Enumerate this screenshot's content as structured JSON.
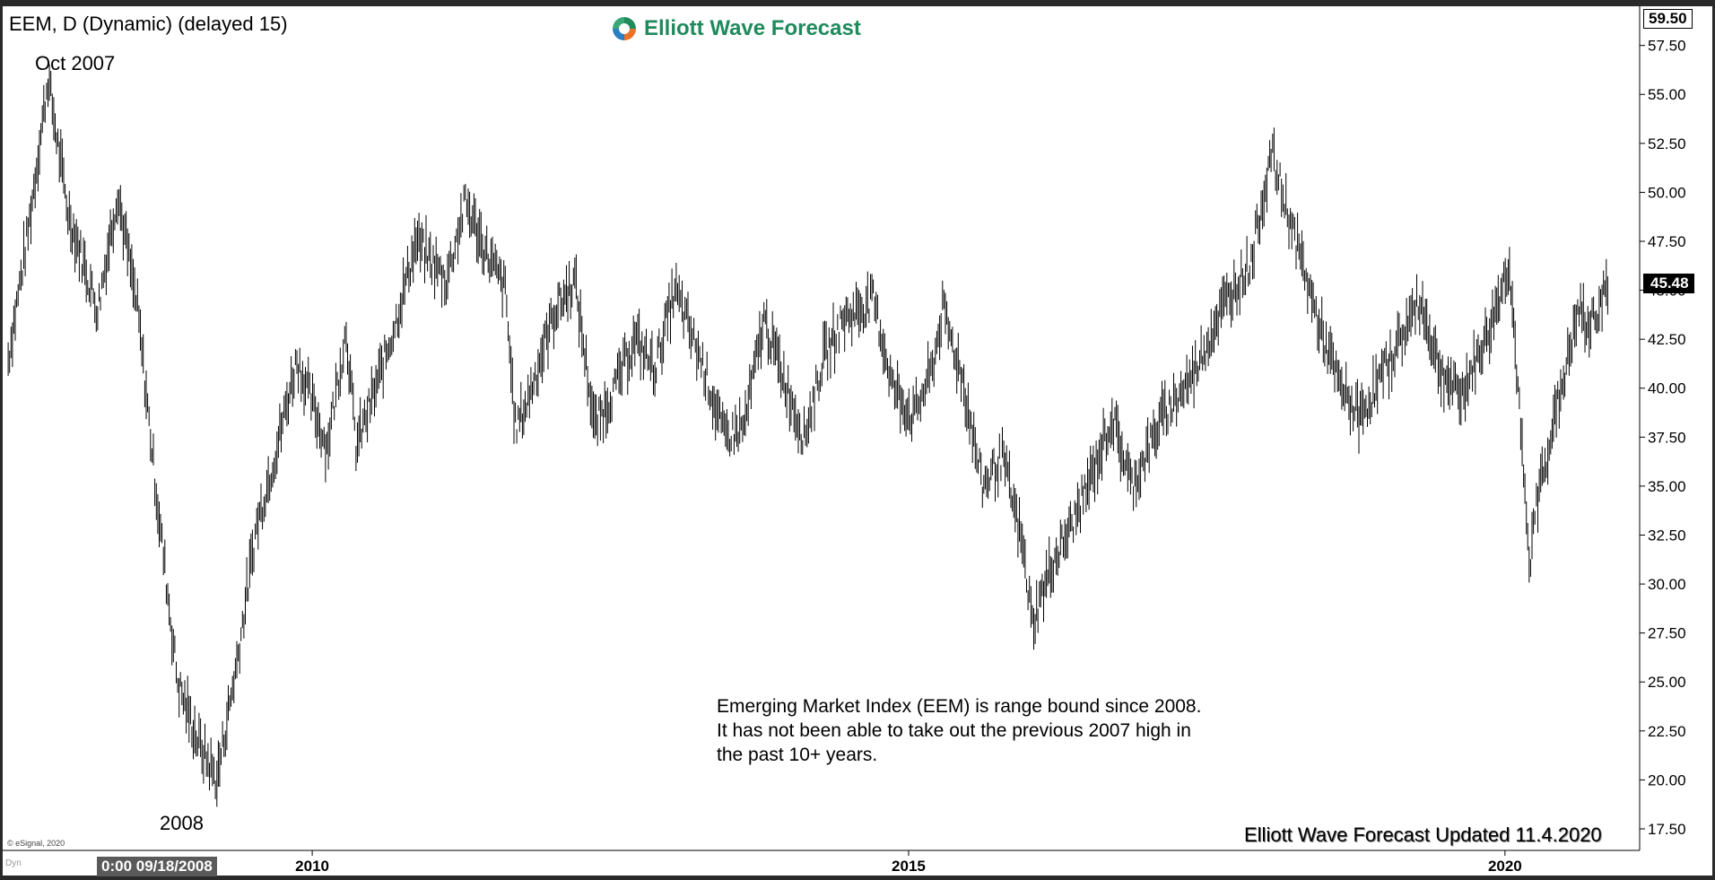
{
  "header": {
    "symbol": "EEM, D (Dynamic) (delayed 15)"
  },
  "logo": {
    "text": "Elliott Wave Forecast",
    "icon": "swirl-logo-icon"
  },
  "labels": {
    "peak": "Oct 2007",
    "trough": "2008"
  },
  "annotation": [
    "Emerging Market Index (EEM) is range bound since 2008.",
    "It has not been able to take out the previous 2007 high in",
    "the past 10+ years."
  ],
  "footer": {
    "updated": "Elliott Wave Forecast Updated 11.4.2020",
    "copyright": "© eSignal, 2020",
    "dyn": "Dyn"
  },
  "cursor": {
    "label": "0:00 09/18/2008"
  },
  "price_tag": {
    "last": "45.48",
    "top": "59.50"
  },
  "colors": {
    "bars": "#000000",
    "logo_green": "#1f8a5c",
    "logo_orange": "#e8742a",
    "logo_blue": "#2a7fc1"
  },
  "chart_data": {
    "type": "line",
    "style": "ohlc-bars",
    "x_tick_labels": [
      "2010",
      "2015",
      "2020"
    ],
    "y_tick_labels": [
      "57.50",
      "55.00",
      "52.50",
      "50.00",
      "47.50",
      "45.00",
      "42.50",
      "40.00",
      "37.50",
      "35.00",
      "32.50",
      "30.00",
      "27.50",
      "25.00",
      "22.50",
      "20.00",
      "17.50"
    ],
    "ylim": [
      16.4,
      59.5
    ],
    "xlim": [
      "2007-06-01",
      "2020-11-04"
    ],
    "grid": false,
    "series": [
      {
        "x": [
          "2007-06",
          "2007-08",
          "2007-10",
          "2007-12",
          "2008-03",
          "2008-05",
          "2008-07",
          "2008-09",
          "2008-11",
          "2009-01",
          "2009-03",
          "2009-05",
          "2009-07",
          "2009-09",
          "2009-11",
          "2010-02",
          "2010-04",
          "2010-05",
          "2010-07",
          "2010-09",
          "2010-11",
          "2011-02",
          "2011-04",
          "2011-06",
          "2011-08",
          "2011-09",
          "2011-10",
          "2012-01",
          "2012-03",
          "2012-05",
          "2012-07",
          "2012-09",
          "2012-11",
          "2013-01",
          "2013-04",
          "2013-06",
          "2013-08",
          "2013-10",
          "2013-12",
          "2014-02",
          "2014-04",
          "2014-06",
          "2014-09",
          "2014-11",
          "2015-01",
          "2015-03",
          "2015-04",
          "2015-06",
          "2015-08",
          "2015-10",
          "2015-12",
          "2016-01",
          "2016-03",
          "2016-05",
          "2016-07",
          "2016-09",
          "2016-11",
          "2017-02",
          "2017-05",
          "2017-08",
          "2017-11",
          "2018-01",
          "2018-03",
          "2018-06",
          "2018-08",
          "2018-10",
          "2019-01",
          "2019-04",
          "2019-06",
          "2019-08",
          "2019-11",
          "2020-01",
          "2020-03",
          "2020-04",
          "2020-06",
          "2020-08",
          "2020-09",
          "2020-11"
        ],
        "values": [
          41.5,
          48.0,
          55.8,
          49.0,
          44.0,
          50.0,
          44.0,
          34.0,
          25.0,
          22.0,
          20.0,
          26.0,
          33.0,
          37.0,
          41.5,
          37.0,
          43.0,
          37.0,
          40.0,
          43.5,
          47.5,
          45.5,
          49.5,
          47.0,
          45.0,
          38.0,
          39.0,
          44.0,
          45.5,
          38.0,
          40.0,
          42.5,
          41.0,
          45.0,
          41.0,
          37.5,
          38.0,
          43.5,
          40.5,
          37.5,
          41.5,
          43.5,
          44.5,
          40.0,
          38.5,
          41.0,
          44.0,
          40.5,
          35.0,
          36.5,
          32.0,
          28.0,
          31.0,
          33.0,
          35.5,
          38.5,
          35.0,
          38.5,
          40.5,
          44.0,
          46.5,
          52.0,
          48.5,
          43.0,
          40.0,
          38.5,
          41.5,
          44.5,
          41.0,
          39.5,
          43.0,
          46.5,
          31.0,
          35.0,
          39.5,
          44.0,
          43.0,
          45.48
        ]
      }
    ]
  }
}
